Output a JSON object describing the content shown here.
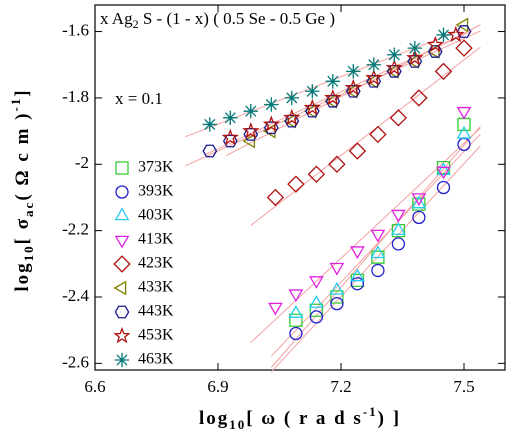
{
  "chart_data": {
    "type": "scatter",
    "title": [
      "x Ag",
      "2",
      " S - (1 - x) ( 0.5 Se - 0.5 Ge )"
    ],
    "annotation": "x = 0.1",
    "x_label": [
      "log",
      "10",
      "[ ω ( r a d s",
      "-1",
      ") ]"
    ],
    "y_label": [
      "log",
      "10",
      "[ σ",
      "ac",
      "( Ω c m )",
      "-1",
      "]"
    ],
    "xlim": [
      6.6,
      7.6
    ],
    "ylim": [
      -2.62,
      -1.52
    ],
    "xticks": [
      6.6,
      6.9,
      7.2,
      7.5
    ],
    "yticks": [
      -2.6,
      -2.4,
      -2.2,
      -2.0,
      -1.8,
      -1.6
    ],
    "fit": true,
    "fit_color": "#f4a0a0",
    "legend": "left",
    "series": [
      {
        "name": "373K",
        "color": "#33cc33",
        "marker": "square",
        "x": [
          7.09,
          7.14,
          7.19,
          7.24,
          7.29,
          7.34,
          7.39,
          7.45,
          7.5
        ],
        "values": [
          -2.47,
          -2.44,
          -2.4,
          -2.35,
          -2.28,
          -2.2,
          -2.12,
          -2.01,
          -1.88
        ]
      },
      {
        "name": "393K",
        "color": "#1f1fd0",
        "marker": "circle",
        "x": [
          7.09,
          7.14,
          7.19,
          7.24,
          7.29,
          7.34,
          7.39,
          7.45,
          7.5
        ],
        "values": [
          -2.51,
          -2.46,
          -2.42,
          -2.36,
          -2.32,
          -2.24,
          -2.16,
          -2.07,
          -1.94
        ]
      },
      {
        "name": "403K",
        "color": "#22ccee",
        "marker": "triangle-up",
        "x": [
          7.09,
          7.14,
          7.19,
          7.24,
          7.29,
          7.34,
          7.39,
          7.45,
          7.5
        ],
        "values": [
          -2.45,
          -2.42,
          -2.38,
          -2.34,
          -2.27,
          -2.2,
          -2.12,
          -2.02,
          -1.91
        ]
      },
      {
        "name": "413K",
        "color": "#e020e0",
        "marker": "triangle-down",
        "x": [
          7.04,
          7.09,
          7.14,
          7.19,
          7.24,
          7.29,
          7.34,
          7.39,
          7.45,
          7.5
        ],
        "values": [
          -2.43,
          -2.39,
          -2.35,
          -2.31,
          -2.26,
          -2.21,
          -2.15,
          -2.1,
          -2.02,
          -1.84
        ]
      },
      {
        "name": "423K",
        "color": "#b01010",
        "marker": "diamond",
        "x": [
          7.04,
          7.09,
          7.14,
          7.19,
          7.24,
          7.29,
          7.34,
          7.39,
          7.45,
          7.5
        ],
        "values": [
          -2.1,
          -2.06,
          -2.03,
          -2.0,
          -1.96,
          -1.91,
          -1.86,
          -1.8,
          -1.72,
          -1.65
        ]
      },
      {
        "name": "433K",
        "color": "#808000",
        "marker": "triangle-left",
        "x": [
          6.98,
          7.03,
          7.08,
          7.13,
          7.18,
          7.23,
          7.28,
          7.33,
          7.38,
          7.43,
          7.5
        ],
        "values": [
          -1.93,
          -1.9,
          -1.87,
          -1.84,
          -1.81,
          -1.78,
          -1.75,
          -1.72,
          -1.69,
          -1.66,
          -1.58
        ]
      },
      {
        "name": "443K",
        "color": "#1a1a90",
        "marker": "hexagon",
        "x": [
          6.88,
          6.93,
          6.98,
          7.03,
          7.08,
          7.13,
          7.18,
          7.23,
          7.28,
          7.33,
          7.38,
          7.43,
          7.5
        ],
        "values": [
          -1.96,
          -1.93,
          -1.91,
          -1.89,
          -1.87,
          -1.84,
          -1.81,
          -1.78,
          -1.75,
          -1.72,
          -1.69,
          -1.66,
          -1.6
        ]
      },
      {
        "name": "453K",
        "color": "#b01010",
        "marker": "star",
        "x": [
          6.93,
          6.98,
          7.03,
          7.08,
          7.13,
          7.18,
          7.23,
          7.28,
          7.33,
          7.38,
          7.43,
          7.48
        ],
        "values": [
          -1.92,
          -1.9,
          -1.88,
          -1.86,
          -1.83,
          -1.8,
          -1.77,
          -1.74,
          -1.71,
          -1.68,
          -1.64,
          -1.61
        ]
      },
      {
        "name": "463K",
        "color": "#007878",
        "marker": "asterisk",
        "x": [
          6.88,
          6.93,
          6.98,
          7.03,
          7.08,
          7.13,
          7.18,
          7.23,
          7.28,
          7.33,
          7.38,
          7.45
        ],
        "values": [
          -1.88,
          -1.86,
          -1.84,
          -1.82,
          -1.8,
          -1.78,
          -1.75,
          -1.72,
          -1.7,
          -1.67,
          -1.65,
          -1.61
        ]
      }
    ]
  }
}
